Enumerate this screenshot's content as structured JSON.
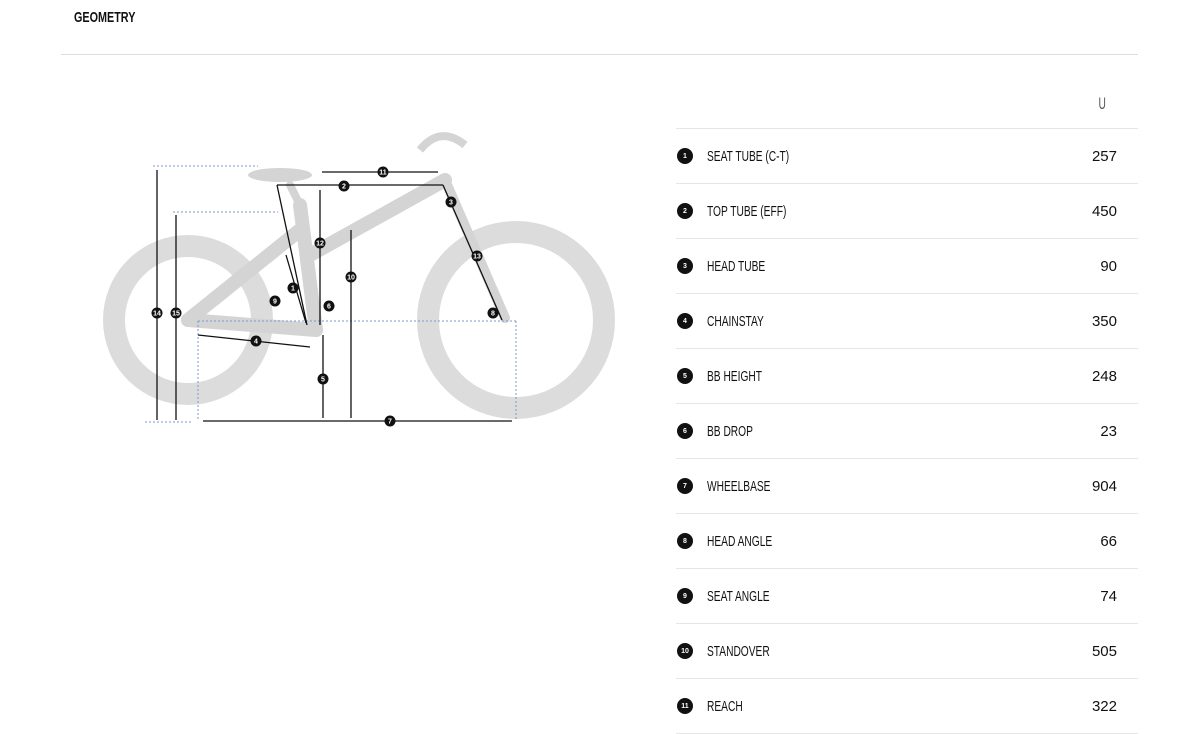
{
  "section_title": "GEOMETRY",
  "size_header": "U",
  "rows": [
    {
      "num": "1",
      "label": "SEAT TUBE (C-T)",
      "value": "257"
    },
    {
      "num": "2",
      "label": "TOP TUBE (EFF)",
      "value": "450"
    },
    {
      "num": "3",
      "label": "HEAD TUBE",
      "value": "90"
    },
    {
      "num": "4",
      "label": "CHAINSTAY",
      "value": "350"
    },
    {
      "num": "5",
      "label": "BB HEIGHT",
      "value": "248"
    },
    {
      "num": "6",
      "label": "BB DROP",
      "value": "23"
    },
    {
      "num": "7",
      "label": "WHEELBASE",
      "value": "904"
    },
    {
      "num": "8",
      "label": "HEAD ANGLE",
      "value": "66"
    },
    {
      "num": "9",
      "label": "SEAT ANGLE",
      "value": "74"
    },
    {
      "num": "10",
      "label": "STANDOVER",
      "value": "505"
    },
    {
      "num": "11",
      "label": "REACH",
      "value": "322"
    }
  ],
  "diagram_markers": [
    "1",
    "2",
    "3",
    "4",
    "5",
    "6",
    "7",
    "8",
    "9",
    "10",
    "11",
    "12",
    "13",
    "14",
    "15"
  ]
}
